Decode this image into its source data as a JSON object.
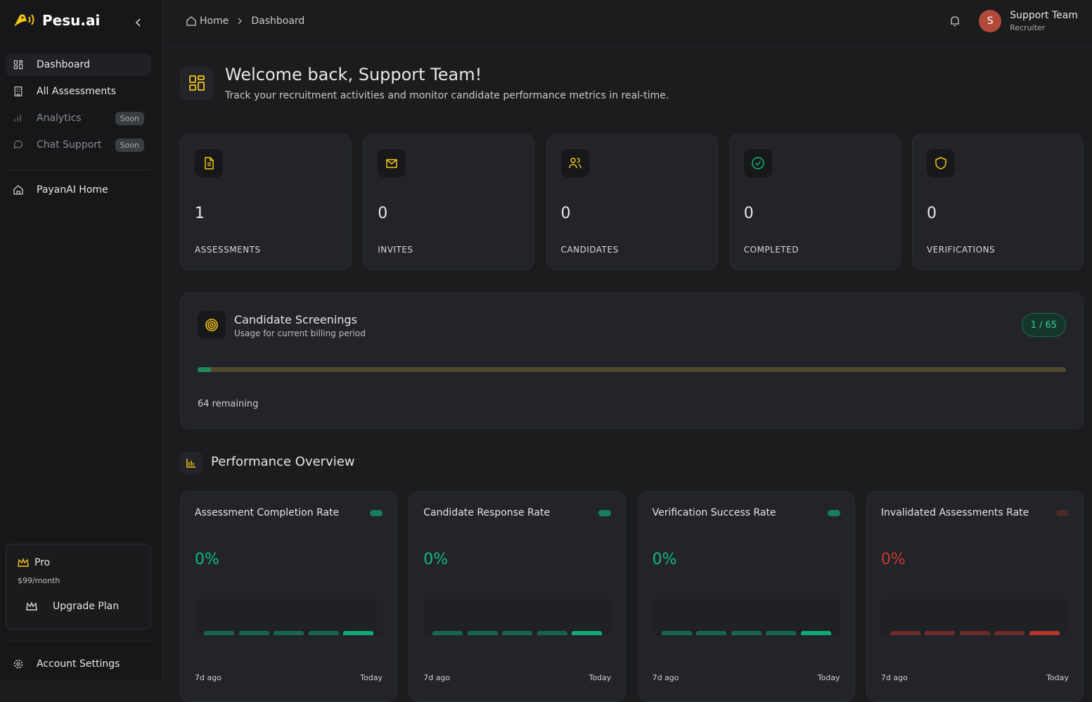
{
  "sidebar": {
    "brand": "Pesu.ai",
    "nav": [
      {
        "label": "Dashboard"
      },
      {
        "label": "All Assessments"
      },
      {
        "label": "Analytics",
        "badge": "Soon"
      },
      {
        "label": "Chat Support",
        "badge": "Soon"
      }
    ],
    "home_link": "PayanAI Home",
    "plan": {
      "name": "Pro",
      "price": "$99/month",
      "button": "Upgrade Plan"
    },
    "settings": "Account Settings"
  },
  "header": {
    "breadcrumb": [
      "Home",
      "Dashboard"
    ],
    "user": {
      "initial": "S",
      "name": "Support Team",
      "role": "Recruiter"
    }
  },
  "welcome": {
    "title": "Welcome back, Support Team!",
    "subtitle": "Track your recruitment activities and monitor candidate performance metrics in real-time."
  },
  "stats": [
    {
      "value": "1",
      "label": "ASSESSMENTS"
    },
    {
      "value": "0",
      "label": "INVITES"
    },
    {
      "value": "0",
      "label": "CANDIDATES"
    },
    {
      "value": "0",
      "label": "COMPLETED"
    },
    {
      "value": "0",
      "label": "VERIFICATIONS"
    }
  ],
  "screenings": {
    "title": "Candidate Screenings",
    "subtitle": "Usage for current billing period",
    "used": 1,
    "separator": "/",
    "limit": 65,
    "remaining": "64 remaining"
  },
  "performance": {
    "title": "Performance Overview",
    "cards": [
      {
        "title": "Assessment Completion Rate",
        "value": "0%",
        "color": "#10b981",
        "start": "7d ago",
        "end": "Today"
      },
      {
        "title": "Candidate Response Rate",
        "value": "0%",
        "color": "#10b981",
        "start": "7d ago",
        "end": "Today"
      },
      {
        "title": "Verification Success Rate",
        "value": "0%",
        "color": "#10b981",
        "start": "7d ago",
        "end": "Today"
      },
      {
        "title": "Invalidated Assessments Rate",
        "value": "0%",
        "color": "#c8382c",
        "start": "7d ago",
        "end": "Today"
      }
    ]
  }
}
